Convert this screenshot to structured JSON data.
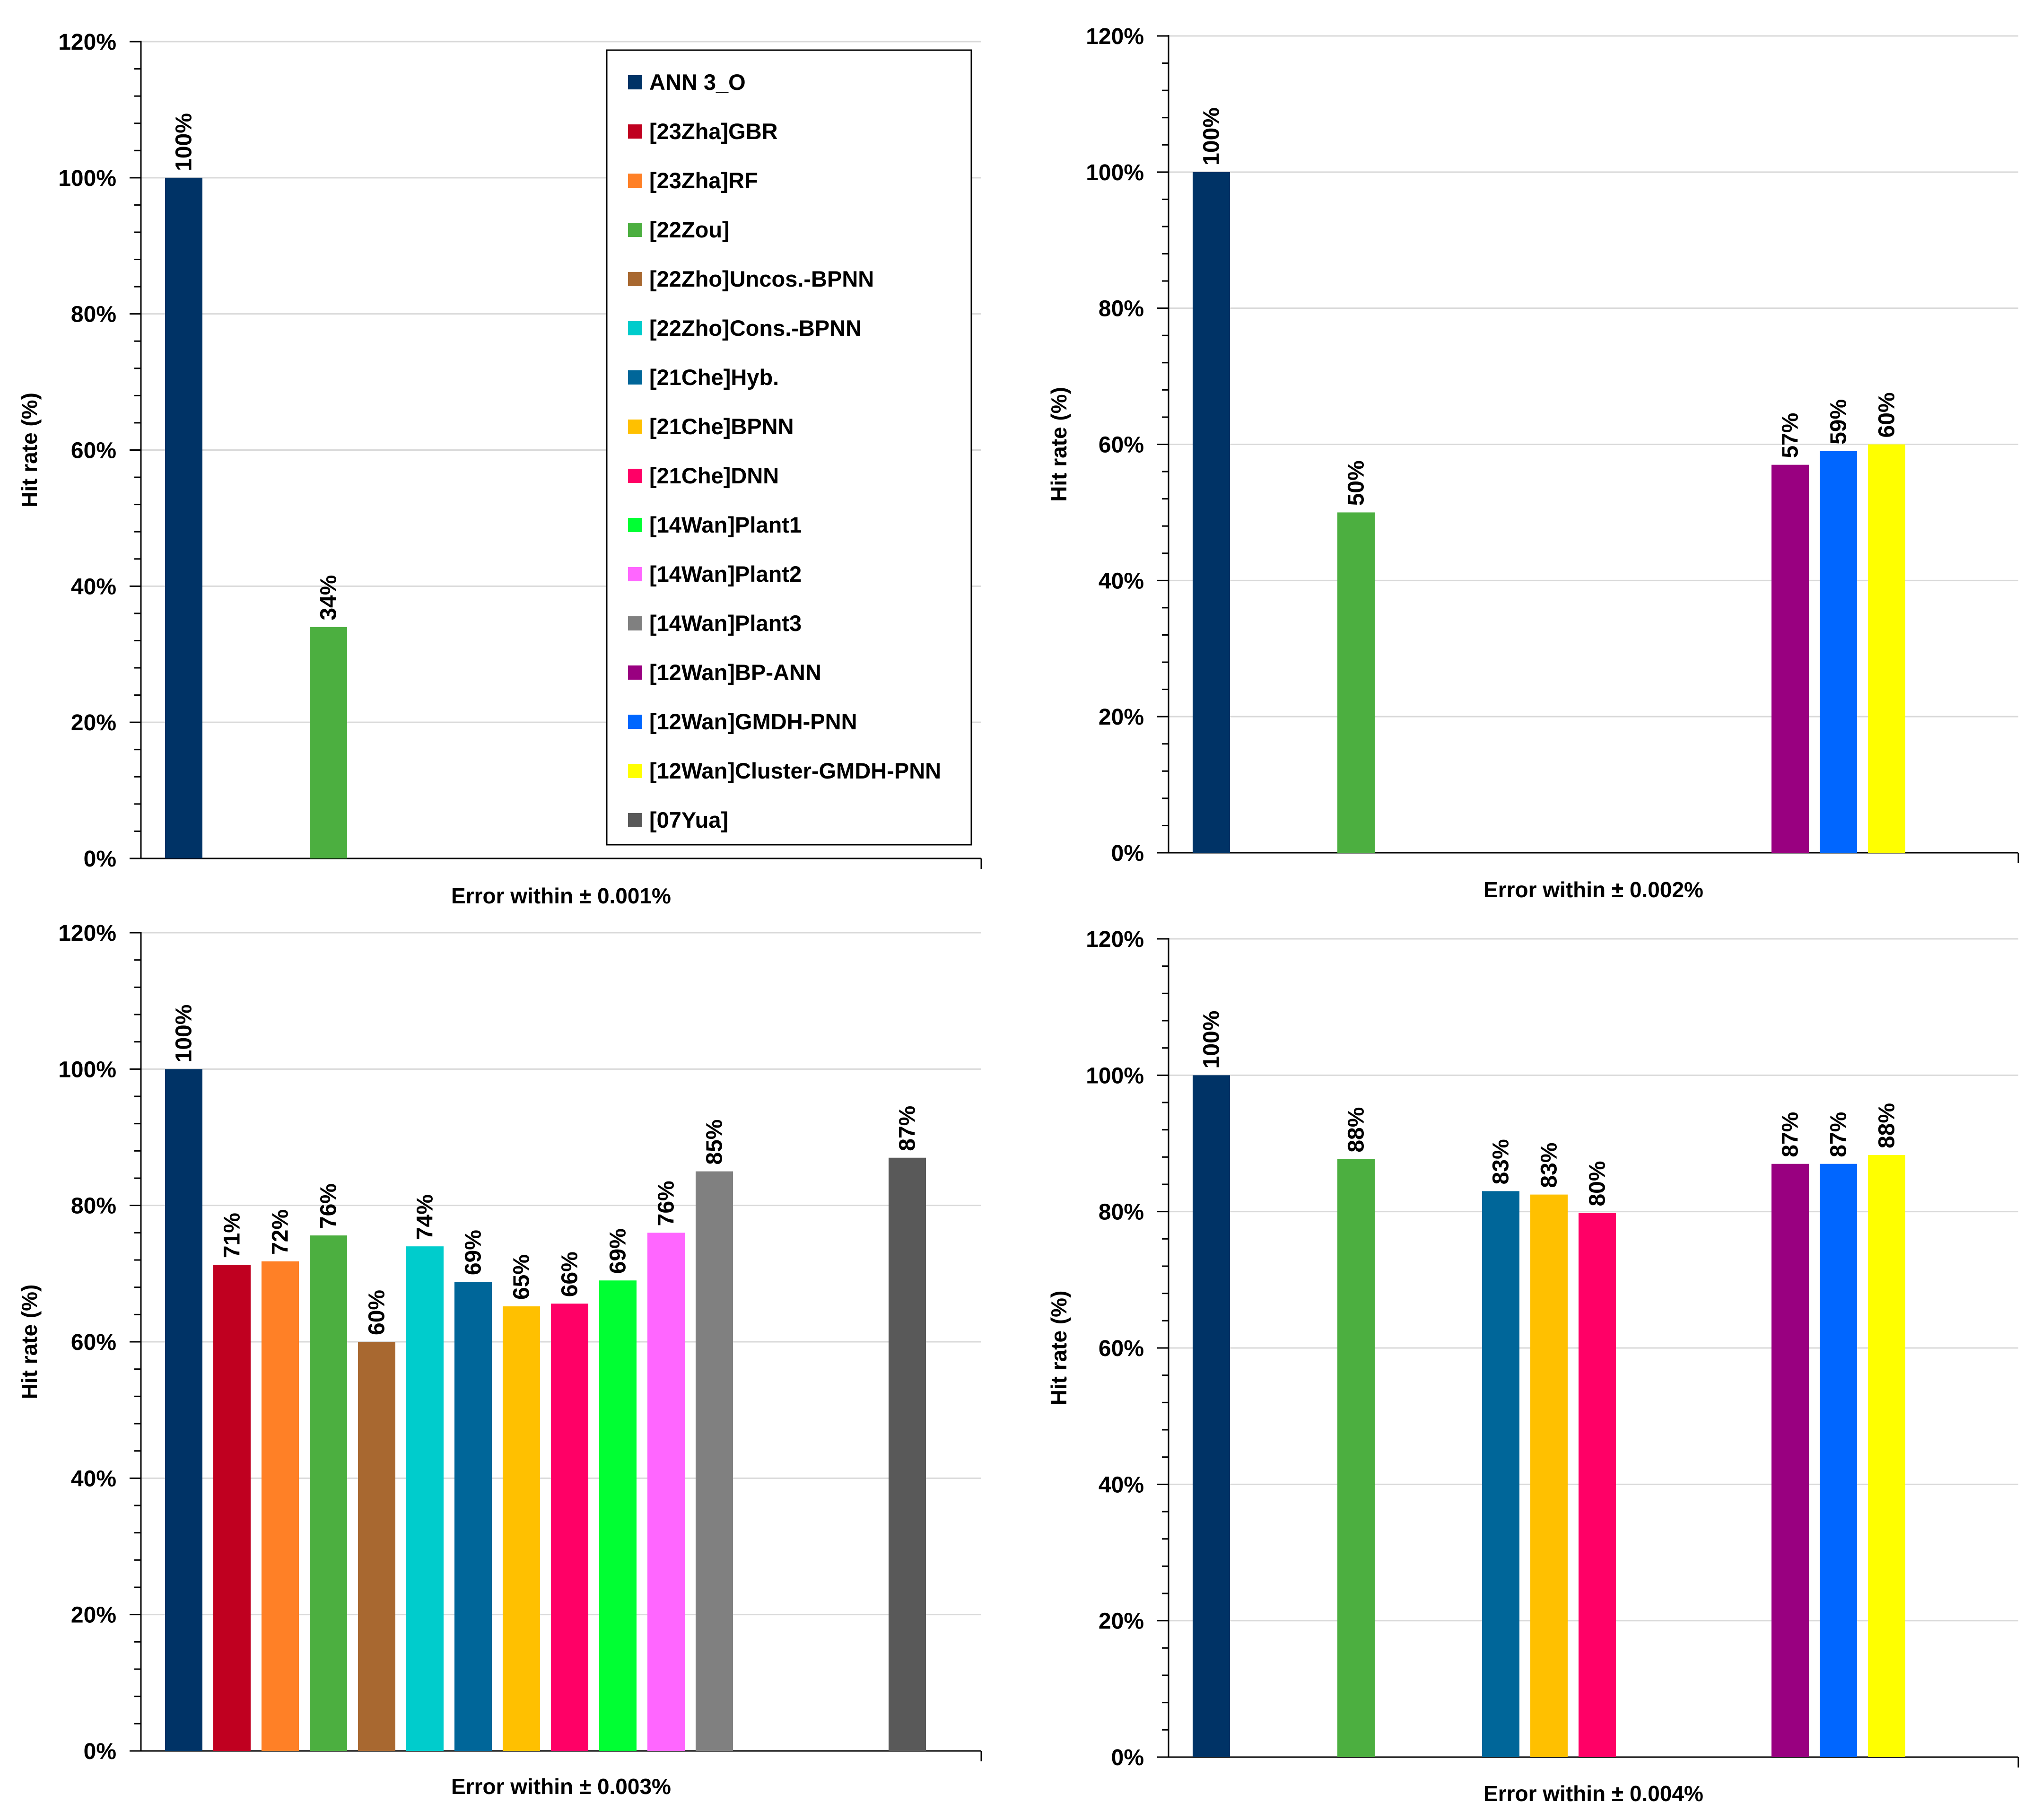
{
  "series_names": [
    "ANN 3_O",
    "[23Zha]GBR",
    "[23Zha]RF",
    "[22Zou]",
    "[22Zho]Uncos.-BPNN",
    "[22Zho]Cons.-BPNN",
    "[21Che]Hyb.",
    "[21Che]BPNN",
    "[21Che]DNN",
    "[14Wan]Plant1",
    "[14Wan]Plant2",
    "[14Wan]Plant3",
    "[12Wan]BP-ANN",
    "[12Wan]GMDH-PNN",
    "[12Wan]Cluster-GMDH-PNN",
    "[07Yua]"
  ],
  "series_colors": [
    "#003366",
    "#C00020",
    "#FF8026",
    "#4CAF40",
    "#A86830",
    "#00CCCC",
    "#006699",
    "#FFC000",
    "#FF0066",
    "#00FF33",
    "#FF66FF",
    "#808080",
    "#990080",
    "#0066FF",
    "#FFFF00",
    "#595959"
  ],
  "chart_data": [
    {
      "type": "bar",
      "xlabel": "Error within ± 0.001%",
      "ylabel": "Hit rate (%)",
      "ylim": [
        0,
        120
      ],
      "y_ticks": [
        "0%",
        "20%",
        "40%",
        "60%",
        "80%",
        "100%",
        "120%"
      ],
      "legend": "top-right",
      "values": [
        100,
        null,
        null,
        34,
        null,
        null,
        null,
        null,
        null,
        null,
        null,
        null,
        null,
        null,
        null,
        null
      ],
      "labels": [
        "100%",
        "",
        "",
        "34%",
        "",
        "",
        "",
        "",
        "",
        "",
        "",
        "",
        "",
        "",
        "",
        ""
      ]
    },
    {
      "type": "bar",
      "xlabel": "Error within ± 0.002%",
      "ylabel": "Hit rate (%)",
      "ylim": [
        0,
        120
      ],
      "y_ticks": [
        "0%",
        "20%",
        "40%",
        "60%",
        "80%",
        "100%",
        "120%"
      ],
      "values": [
        100,
        null,
        null,
        50,
        null,
        null,
        null,
        null,
        null,
        null,
        null,
        null,
        57,
        59,
        60,
        null
      ],
      "labels": [
        "100%",
        "",
        "",
        "50%",
        "",
        "",
        "",
        "",
        "",
        "",
        "",
        "",
        "57%",
        "59%",
        "60%",
        ""
      ]
    },
    {
      "type": "bar",
      "xlabel": "Error within ± 0.003%",
      "ylabel": "Hit rate (%)",
      "ylim": [
        0,
        120
      ],
      "y_ticks": [
        "0%",
        "20%",
        "40%",
        "60%",
        "80%",
        "100%",
        "120%"
      ],
      "values": [
        100,
        71.3,
        71.8,
        75.6,
        60,
        74,
        68.8,
        65.2,
        65.6,
        69,
        76,
        85,
        null,
        null,
        null,
        87
      ],
      "labels": [
        "100%",
        "71%",
        "72%",
        "76%",
        "60%",
        "74%",
        "69%",
        "65%",
        "66%",
        "69%",
        "76%",
        "85%",
        "",
        "",
        "",
        "87%"
      ]
    },
    {
      "type": "bar",
      "xlabel": "Error within ± 0.004%",
      "ylabel": "Hit rate (%)",
      "ylim": [
        0,
        120
      ],
      "y_ticks": [
        "0%",
        "20%",
        "40%",
        "60%",
        "80%",
        "100%",
        "120%"
      ],
      "values": [
        100,
        null,
        null,
        87.7,
        null,
        null,
        83,
        82.5,
        79.8,
        null,
        null,
        null,
        87,
        87,
        88.3,
        null
      ],
      "labels": [
        "100%",
        "",
        "",
        "88%",
        "",
        "",
        "83%",
        "83%",
        "80%",
        "",
        "",
        "",
        "87%",
        "87%",
        "88%",
        ""
      ]
    }
  ]
}
